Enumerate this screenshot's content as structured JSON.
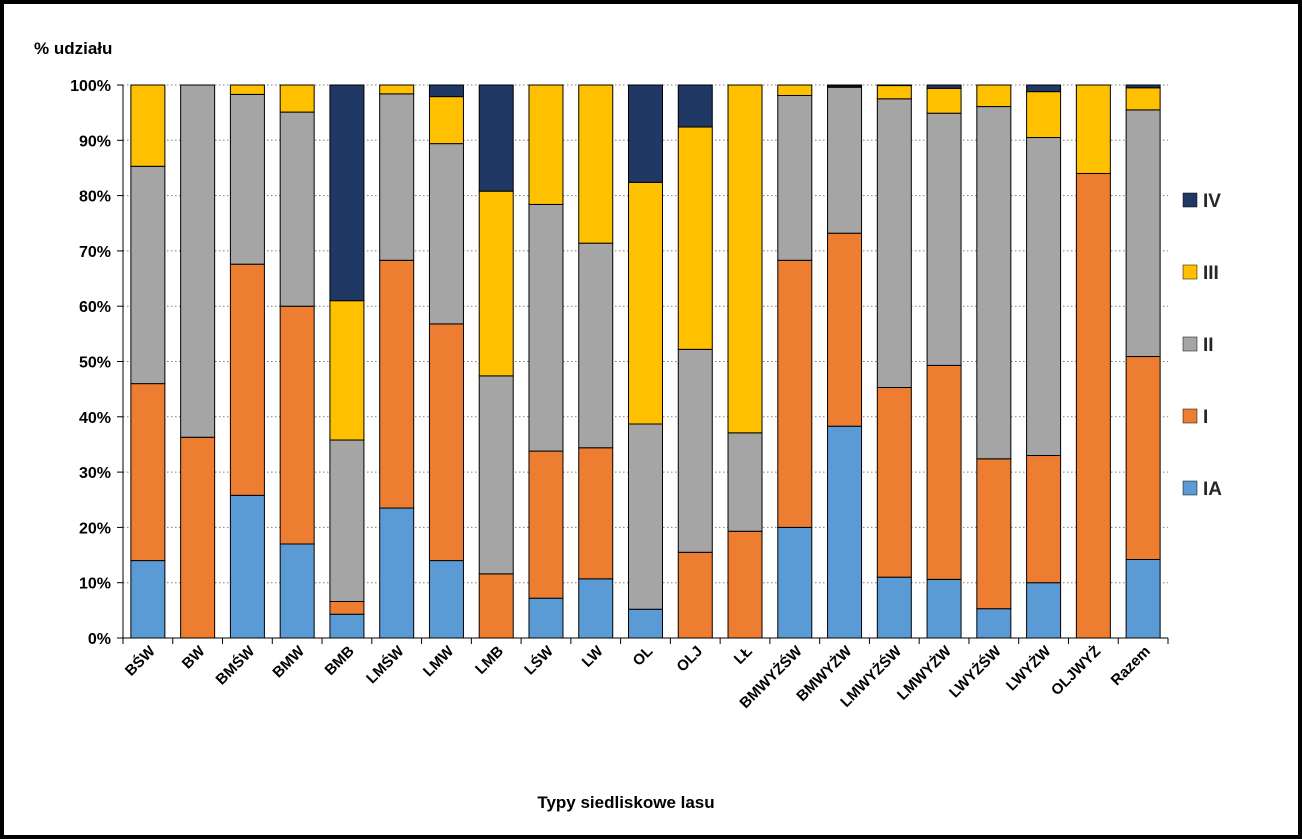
{
  "chart_data": {
    "type": "bar",
    "stacked": true,
    "title": "",
    "ylabel": "% udziału",
    "xlabel": "Typy siedliskowe lasu",
    "ylim": [
      0,
      100
    ],
    "yticks": [
      "0%",
      "10%",
      "20%",
      "30%",
      "40%",
      "50%",
      "60%",
      "70%",
      "80%",
      "90%",
      "100%"
    ],
    "grid": "horizontal-dotted",
    "legend_position": "right",
    "categories": [
      "BŚW",
      "BW",
      "BMŚW",
      "BMW",
      "BMB",
      "LMŚW",
      "LMW",
      "LMB",
      "LŚW",
      "LW",
      "OL",
      "OLJ",
      "LŁ",
      "BMWYŻŚW",
      "BMWYŻW",
      "LMWYŻŚW",
      "LMWYŻW",
      "LWYŻŚW",
      "LWYŻW",
      "OLJWYŻ",
      "Razem"
    ],
    "series": [
      {
        "name": "IA",
        "color": "#5B9BD5",
        "values": [
          14,
          0,
          25.8,
          17,
          4.3,
          23.5,
          14,
          0,
          7.2,
          10.7,
          5.2,
          0,
          0,
          20,
          38.3,
          11,
          10.6,
          5.3,
          10,
          0,
          14.2
        ]
      },
      {
        "name": "I",
        "color": "#ED7D31",
        "values": [
          32,
          36.3,
          41.8,
          43,
          2.3,
          44.8,
          42.8,
          11.6,
          26.6,
          23.7,
          0,
          15.5,
          19.3,
          48.3,
          34.9,
          34.3,
          38.7,
          27.1,
          23,
          84,
          36.7
        ]
      },
      {
        "name": "II",
        "color": "#A5A5A5",
        "values": [
          39.3,
          63.7,
          30.7,
          35.1,
          29.2,
          30.1,
          32.6,
          35.8,
          44.6,
          37,
          33.5,
          36.7,
          17.8,
          29.8,
          26.4,
          52.2,
          45.6,
          63.7,
          57.5,
          0,
          44.6
        ]
      },
      {
        "name": "III",
        "color": "#FFC000",
        "values": [
          14.7,
          0,
          1.7,
          4.9,
          25.2,
          1.6,
          8.5,
          33.4,
          21.6,
          28.6,
          43.7,
          40.2,
          62.9,
          1.9,
          0.2,
          2.4,
          4.5,
          3.9,
          8.3,
          16,
          4
        ]
      },
      {
        "name": "IV",
        "color": "#203864",
        "values": [
          0,
          0,
          0,
          0,
          39,
          0,
          2.1,
          19.2,
          0,
          0,
          17.6,
          7.6,
          0,
          0,
          0.2,
          0.1,
          0.6,
          0,
          1.2,
          0,
          0.5
        ]
      }
    ]
  }
}
